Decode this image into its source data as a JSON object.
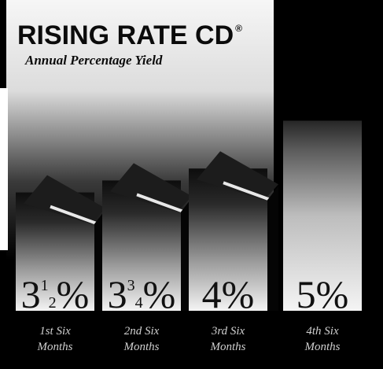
{
  "chart_data": {
    "type": "bar",
    "title": "RISING RATE CD",
    "title_mark": "®",
    "subtitle": "Annual Percentage Yield",
    "categories": [
      [
        "1st Six",
        "Months"
      ],
      [
        "2nd Six",
        "Months"
      ],
      [
        "3rd Six",
        "Months"
      ],
      [
        "4th Six",
        "Months"
      ]
    ],
    "values": [
      3.5,
      3.75,
      4,
      5
    ],
    "value_labels": [
      {
        "whole": "3",
        "num": "1",
        "den": "2",
        "unit": "%"
      },
      {
        "whole": "3",
        "num": "3",
        "den": "4",
        "unit": "%"
      },
      {
        "whole": "4",
        "num": "",
        "den": "",
        "unit": "%"
      },
      {
        "whole": "5",
        "num": "",
        "den": "",
        "unit": "%"
      }
    ],
    "ylim": [
      0,
      5
    ],
    "grid": false,
    "colors": {
      "background": "#000000",
      "bar_light": "#f2f2f2",
      "bar_dark": "#0a0a0a",
      "label_text": "#cfcfcf"
    }
  }
}
